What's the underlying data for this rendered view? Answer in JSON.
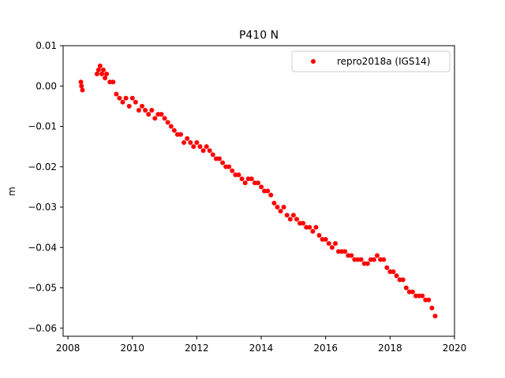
{
  "chart_data": {
    "type": "scatter",
    "title": "P410 N",
    "xlabel": "",
    "ylabel": "m",
    "xlim": [
      2007.85,
      2020.0
    ],
    "ylim": [
      -0.062,
      0.01
    ],
    "xticks": [
      2008,
      2010,
      2012,
      2014,
      2016,
      2018,
      2020
    ],
    "xtick_labels": [
      "2008",
      "2010",
      "2012",
      "2014",
      "2016",
      "2018",
      "2020"
    ],
    "yticks": [
      0.01,
      0.0,
      -0.01,
      -0.02,
      -0.03,
      -0.04,
      -0.05,
      -0.06
    ],
    "ytick_labels": [
      "0.01",
      "0.00",
      "−0.01",
      "−0.02",
      "−0.03",
      "−0.04",
      "−0.05",
      "−0.06"
    ],
    "grid": false,
    "legend_position": "top-right",
    "series": [
      {
        "name": "repro2018a (IGS14)",
        "color": "#ff0000",
        "marker": "circle",
        "x": [
          2008.4,
          2008.42,
          2008.45,
          2008.9,
          2008.95,
          2009.0,
          2009.05,
          2009.1,
          2009.15,
          2009.2,
          2009.3,
          2009.4,
          2009.5,
          2009.6,
          2009.7,
          2009.8,
          2009.9,
          2010.0,
          2010.1,
          2010.2,
          2010.3,
          2010.4,
          2010.5,
          2010.6,
          2010.7,
          2010.8,
          2010.9,
          2011.0,
          2011.1,
          2011.2,
          2011.3,
          2011.4,
          2011.5,
          2011.6,
          2011.7,
          2011.8,
          2011.9,
          2012.0,
          2012.1,
          2012.2,
          2012.3,
          2012.4,
          2012.5,
          2012.6,
          2012.7,
          2012.8,
          2012.9,
          2013.0,
          2013.1,
          2013.2,
          2013.3,
          2013.4,
          2013.5,
          2013.6,
          2013.7,
          2013.8,
          2013.9,
          2014.0,
          2014.1,
          2014.2,
          2014.3,
          2014.4,
          2014.5,
          2014.6,
          2014.7,
          2014.8,
          2014.9,
          2015.0,
          2015.1,
          2015.2,
          2015.3,
          2015.4,
          2015.5,
          2015.6,
          2015.7,
          2015.8,
          2015.9,
          2016.0,
          2016.1,
          2016.2,
          2016.3,
          2016.4,
          2016.5,
          2016.6,
          2016.7,
          2016.8,
          2016.9,
          2017.0,
          2017.1,
          2017.2,
          2017.3,
          2017.4,
          2017.5,
          2017.6,
          2017.7,
          2017.8,
          2017.9,
          2018.0,
          2018.1,
          2018.2,
          2018.3,
          2018.4,
          2018.5,
          2018.6,
          2018.7,
          2018.8,
          2018.9,
          2019.0,
          2019.1,
          2019.2,
          2019.3,
          2019.4
        ],
        "y": [
          0.001,
          0.0,
          -0.001,
          0.003,
          0.004,
          0.005,
          0.003,
          0.004,
          0.002,
          0.003,
          0.001,
          0.001,
          -0.002,
          -0.003,
          -0.004,
          -0.003,
          -0.005,
          -0.003,
          -0.004,
          -0.006,
          -0.005,
          -0.006,
          -0.007,
          -0.006,
          -0.008,
          -0.007,
          -0.007,
          -0.008,
          -0.009,
          -0.01,
          -0.011,
          -0.012,
          -0.012,
          -0.014,
          -0.013,
          -0.014,
          -0.015,
          -0.014,
          -0.015,
          -0.016,
          -0.015,
          -0.016,
          -0.017,
          -0.018,
          -0.018,
          -0.019,
          -0.02,
          -0.02,
          -0.021,
          -0.022,
          -0.022,
          -0.023,
          -0.024,
          -0.023,
          -0.023,
          -0.024,
          -0.024,
          -0.025,
          -0.026,
          -0.026,
          -0.027,
          -0.029,
          -0.03,
          -0.031,
          -0.03,
          -0.032,
          -0.033,
          -0.032,
          -0.033,
          -0.034,
          -0.034,
          -0.035,
          -0.035,
          -0.036,
          -0.035,
          -0.037,
          -0.038,
          -0.038,
          -0.039,
          -0.04,
          -0.039,
          -0.041,
          -0.041,
          -0.041,
          -0.042,
          -0.042,
          -0.043,
          -0.043,
          -0.043,
          -0.044,
          -0.044,
          -0.043,
          -0.043,
          -0.042,
          -0.043,
          -0.043,
          -0.045,
          -0.046,
          -0.046,
          -0.047,
          -0.048,
          -0.048,
          -0.05,
          -0.051,
          -0.051,
          -0.052,
          -0.052,
          -0.052,
          -0.053,
          -0.053,
          -0.055,
          -0.057
        ]
      }
    ]
  }
}
